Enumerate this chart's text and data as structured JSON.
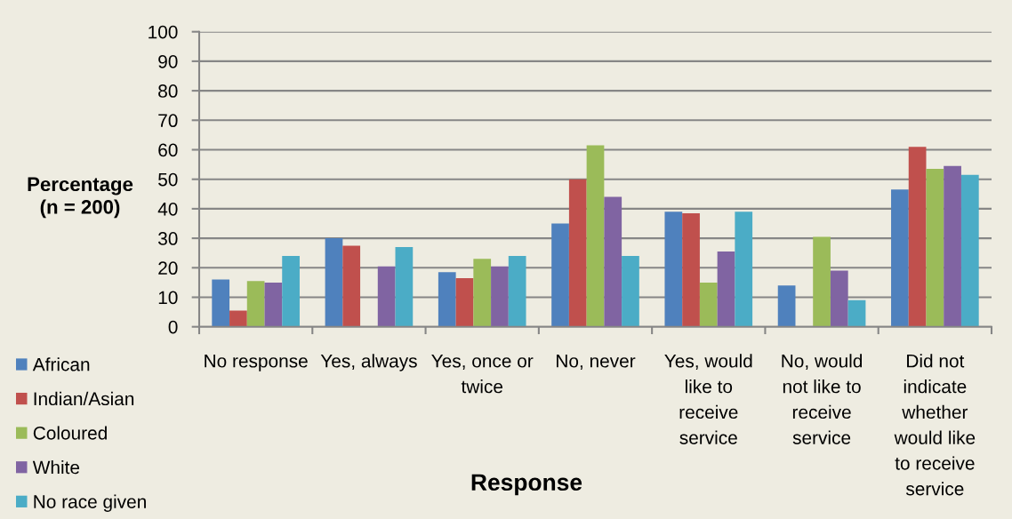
{
  "chart_data": {
    "type": "bar",
    "xlabel": "Response",
    "ylabel": "Percentage\n(n = 200)",
    "categories": [
      "No response",
      "Yes, always",
      "Yes, once or\ntwice",
      "No, never",
      "Yes, would\nlike to\nreceive\nservice",
      "No, would\nnot like to\nreceive\nservice",
      "Did not\nindicate\nwhether\nwould like\nto receive\nservice"
    ],
    "series": [
      {
        "name": "African",
        "color": "#4f81bd",
        "values": [
          16,
          30,
          18.5,
          35,
          39,
          14,
          46.5
        ]
      },
      {
        "name": "Indian/Asian",
        "color": "#c0504d",
        "values": [
          5.5,
          27.5,
          16.5,
          50,
          38.5,
          0,
          61
        ]
      },
      {
        "name": "Coloured",
        "color": "#9bbb59",
        "values": [
          15.5,
          0,
          23,
          61.5,
          15,
          30.5,
          53.5
        ]
      },
      {
        "name": "White",
        "color": "#8064a2",
        "values": [
          15,
          20.5,
          20.5,
          44,
          25.5,
          19,
          54.5
        ]
      },
      {
        "name": "No race given",
        "color": "#4bacc6",
        "values": [
          24,
          27,
          24,
          24,
          39,
          9,
          51.5
        ]
      }
    ],
    "ylim": [
      0,
      100
    ],
    "yticks": [
      0,
      10,
      20,
      30,
      40,
      50,
      60,
      70,
      80,
      90,
      100
    ],
    "grid": "y",
    "legend": "bottom left"
  }
}
